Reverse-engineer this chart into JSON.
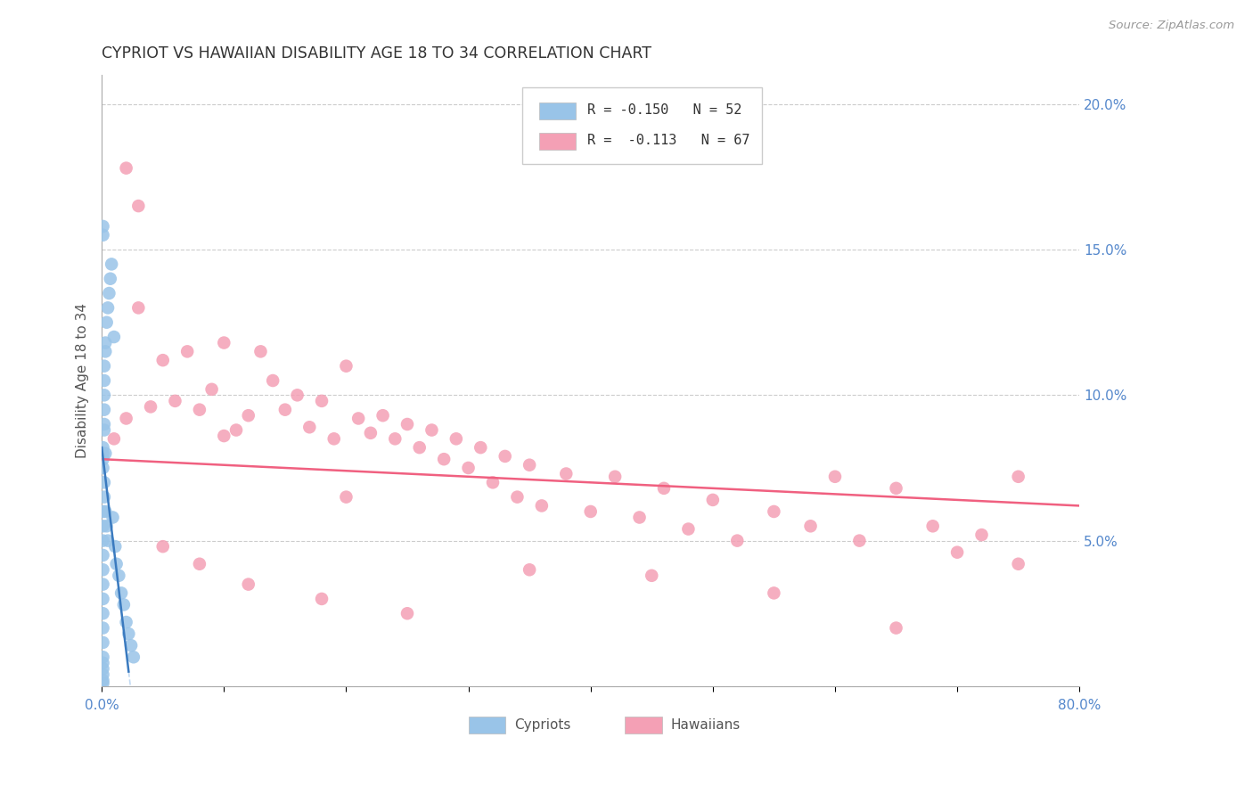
{
  "title": "CYPRIOT VS HAWAIIAN DISABILITY AGE 18 TO 34 CORRELATION CHART",
  "source": "Source: ZipAtlas.com",
  "ylabel": "Disability Age 18 to 34",
  "xlim": [
    0,
    0.8
  ],
  "ylim": [
    0,
    0.21
  ],
  "legend_r_cypriot": "R = -0.150",
  "legend_n_cypriot": "N = 52",
  "legend_r_hawaiian": "R =  -0.113",
  "legend_n_hawaiian": "N = 67",
  "cypriot_color": "#99c4e8",
  "hawaiian_color": "#f4a0b5",
  "trend_cypriot_color": "#3a7abf",
  "trend_hawaiian_color": "#f06080",
  "trend_cypriot_ext_color": "#aaccee",
  "background_color": "#ffffff",
  "grid_color": "#cccccc",
  "title_color": "#333333",
  "axis_label_color": "#555555",
  "right_tick_color": "#5588cc",
  "bottom_tick_color": "#5588cc",
  "cypriot_x": [
    0.001,
    0.001,
    0.001,
    0.001,
    0.001,
    0.001,
    0.001,
    0.001,
    0.001,
    0.001,
    0.001,
    0.001,
    0.001,
    0.001,
    0.001,
    0.001,
    0.001,
    0.001,
    0.001,
    0.001,
    0.002,
    0.002,
    0.002,
    0.002,
    0.002,
    0.002,
    0.002,
    0.002,
    0.003,
    0.003,
    0.003,
    0.003,
    0.004,
    0.004,
    0.005,
    0.005,
    0.006,
    0.007,
    0.008,
    0.009,
    0.01,
    0.011,
    0.012,
    0.014,
    0.016,
    0.018,
    0.02,
    0.022,
    0.024,
    0.026,
    0.001,
    0.001
  ],
  "cypriot_y": [
    0.08,
    0.082,
    0.075,
    0.078,
    0.06,
    0.055,
    0.05,
    0.045,
    0.04,
    0.035,
    0.03,
    0.025,
    0.02,
    0.015,
    0.01,
    0.008,
    0.006,
    0.004,
    0.002,
    0.001,
    0.095,
    0.09,
    0.088,
    0.1,
    0.105,
    0.11,
    0.07,
    0.065,
    0.115,
    0.118,
    0.08,
    0.06,
    0.125,
    0.055,
    0.13,
    0.05,
    0.135,
    0.14,
    0.145,
    0.058,
    0.12,
    0.048,
    0.042,
    0.038,
    0.032,
    0.028,
    0.022,
    0.018,
    0.014,
    0.01,
    0.155,
    0.158
  ],
  "hawaiian_x": [
    0.01,
    0.02,
    0.03,
    0.04,
    0.05,
    0.06,
    0.07,
    0.08,
    0.09,
    0.1,
    0.11,
    0.12,
    0.13,
    0.14,
    0.15,
    0.16,
    0.17,
    0.18,
    0.19,
    0.2,
    0.21,
    0.22,
    0.23,
    0.24,
    0.25,
    0.26,
    0.27,
    0.28,
    0.29,
    0.3,
    0.31,
    0.32,
    0.33,
    0.34,
    0.35,
    0.36,
    0.38,
    0.4,
    0.42,
    0.44,
    0.46,
    0.48,
    0.5,
    0.52,
    0.55,
    0.58,
    0.6,
    0.62,
    0.65,
    0.68,
    0.7,
    0.72,
    0.75,
    0.02,
    0.03,
    0.05,
    0.08,
    0.12,
    0.18,
    0.25,
    0.35,
    0.45,
    0.55,
    0.65,
    0.75,
    0.1,
    0.2
  ],
  "hawaiian_y": [
    0.085,
    0.092,
    0.13,
    0.096,
    0.112,
    0.098,
    0.115,
    0.095,
    0.102,
    0.118,
    0.088,
    0.093,
    0.115,
    0.105,
    0.095,
    0.1,
    0.089,
    0.098,
    0.085,
    0.11,
    0.092,
    0.087,
    0.093,
    0.085,
    0.09,
    0.082,
    0.088,
    0.078,
    0.085,
    0.075,
    0.082,
    0.07,
    0.079,
    0.065,
    0.076,
    0.062,
    0.073,
    0.06,
    0.072,
    0.058,
    0.068,
    0.054,
    0.064,
    0.05,
    0.06,
    0.055,
    0.072,
    0.05,
    0.068,
    0.055,
    0.046,
    0.052,
    0.042,
    0.178,
    0.165,
    0.048,
    0.042,
    0.035,
    0.03,
    0.025,
    0.04,
    0.038,
    0.032,
    0.02,
    0.072,
    0.086,
    0.065
  ]
}
